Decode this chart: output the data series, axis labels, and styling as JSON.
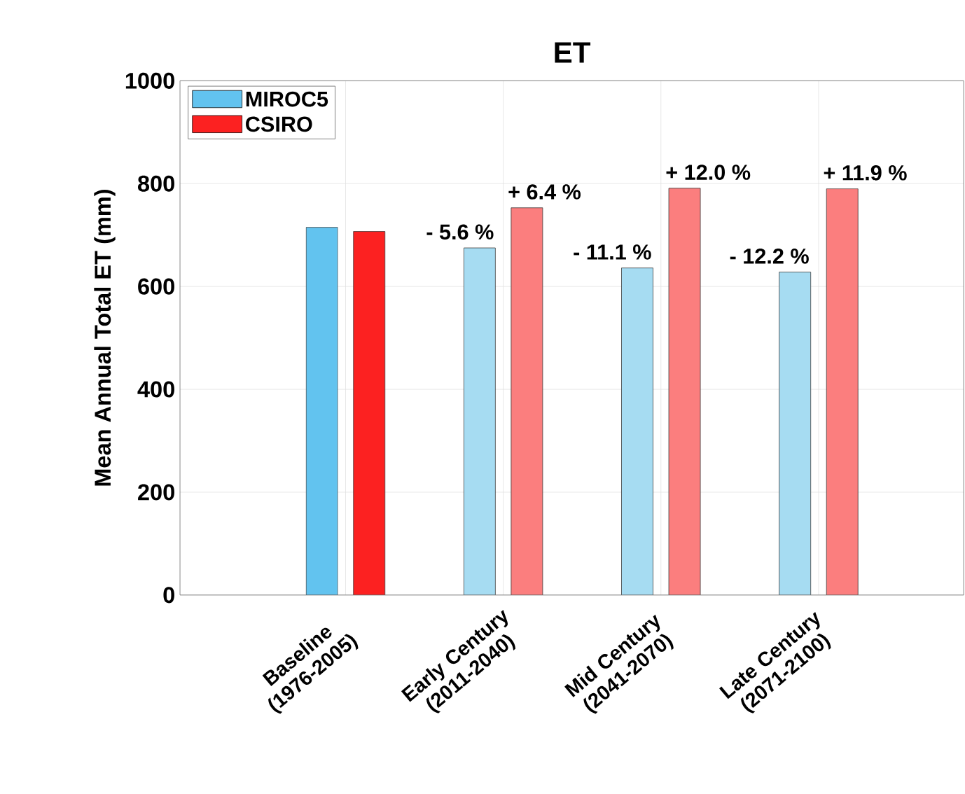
{
  "chart_data": {
    "type": "bar",
    "title": "ET",
    "ylabel": "Mean Annual Total ET (mm)",
    "categories": [
      "Baseline (1976-2005)",
      "Early Century (2011-2040)",
      "Mid Century (2041-2070)",
      "Late Century (2071-2100)"
    ],
    "series": [
      {
        "name": "MIROC5",
        "color": "#62c3ef",
        "colors": [
          "#62c3ef",
          "#a6dcf2",
          "#a6dcf2",
          "#a6dcf2"
        ],
        "values": [
          715,
          675,
          636,
          628
        ]
      },
      {
        "name": "CSIRO",
        "color": "#fc2121",
        "colors": [
          "#fc2121",
          "#fb7e7e",
          "#fb7e7e",
          "#fb7e7e"
        ],
        "values": [
          707,
          753,
          791,
          790
        ]
      }
    ],
    "annotations": [
      "- 5.6 %",
      "+ 6.4 %",
      "- 11.1 %",
      "+ 12.0 %",
      "- 12.2 %",
      "+ 11.9 %"
    ],
    "ylim": [
      0,
      1000
    ],
    "yticks": [
      0,
      200,
      400,
      600,
      800,
      1000
    ],
    "grid": true,
    "legend": "top left"
  }
}
